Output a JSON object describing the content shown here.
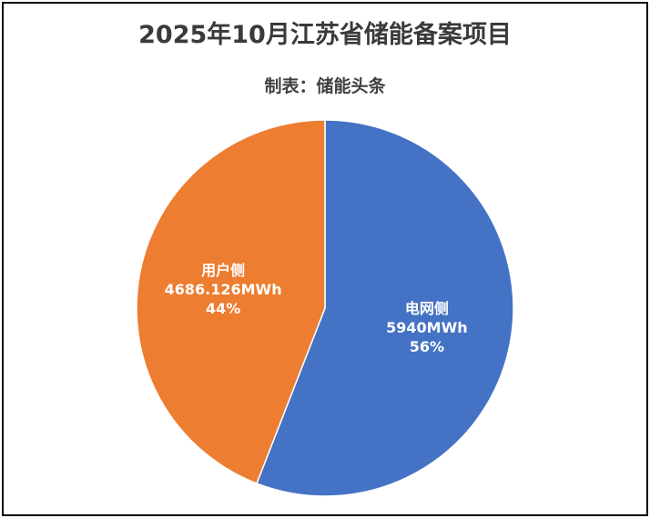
{
  "chart_data": {
    "type": "pie",
    "title": "2025年10月江苏省储能备案项目",
    "subtitle": "制表：储能头条",
    "unit": "MWh",
    "slices": [
      {
        "name": "电网侧",
        "value": 5940,
        "value_label": "5940MWh",
        "percent_label": "56%",
        "color": "#4472C4"
      },
      {
        "name": "用户侧",
        "value": 4686.126,
        "value_label": "4686.126MWh",
        "percent_label": "44%",
        "color": "#ED7D31"
      }
    ],
    "start": "12 o'clock",
    "direction": "clockwise",
    "legend": "none"
  }
}
